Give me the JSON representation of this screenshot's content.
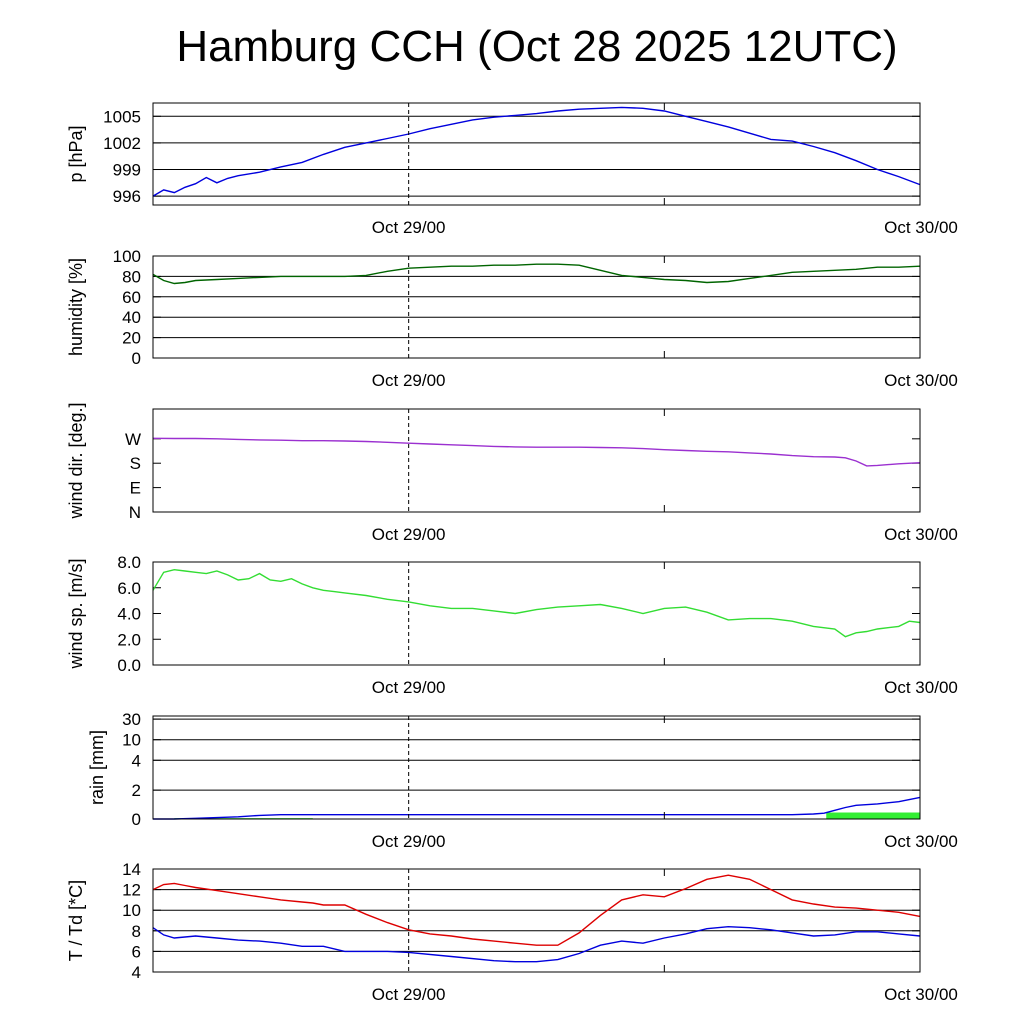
{
  "title": "Hamburg CCH (Oct 28 2025 12UTC)",
  "time_axis": {
    "start": "Oct 28 12UTC",
    "end": "Oct 30 00UTC",
    "tick_labels": [
      "Oct 29/00",
      "Oct 30/00"
    ],
    "dashed_marker": "Oct 29/00"
  },
  "chart_data": [
    {
      "id": "pressure",
      "type": "line",
      "ylabel": "p [hPa]",
      "ylim": [
        995,
        1006.5
      ],
      "yticks": [
        {
          "v": 996,
          "label": "996"
        },
        {
          "v": 999,
          "label": "999"
        },
        {
          "v": 1002,
          "label": "1002"
        },
        {
          "v": 1005,
          "label": "1005"
        }
      ],
      "grid": true,
      "series": [
        {
          "color": "#0000dd",
          "x": [
            0,
            0.5,
            1,
            1.5,
            2,
            2.5,
            3,
            3.5,
            4,
            5,
            6,
            7,
            8,
            9,
            10,
            11,
            12,
            13,
            14,
            15,
            16,
            17,
            18,
            19,
            20,
            21,
            22,
            23,
            24,
            25,
            26,
            27,
            28,
            29,
            30,
            31,
            32,
            33,
            34,
            35,
            36
          ],
          "y": [
            996.0,
            996.7,
            996.4,
            997.0,
            997.4,
            998.1,
            997.5,
            998.0,
            998.3,
            998.7,
            999.3,
            999.8,
            1000.7,
            1001.5,
            1002.0,
            1002.5,
            1003.0,
            1003.6,
            1004.1,
            1004.6,
            1004.9,
            1005.1,
            1005.3,
            1005.6,
            1005.8,
            1005.9,
            1006.0,
            1005.9,
            1005.6,
            1005.0,
            1004.4,
            1003.8,
            1003.1,
            1002.4,
            1002.2,
            1001.6,
            1000.9,
            1000.0,
            999.0,
            998.2,
            997.3
          ]
        }
      ]
    },
    {
      "id": "humidity",
      "type": "line",
      "ylabel": "humidity [%]",
      "ylim": [
        0,
        100
      ],
      "yticks": [
        {
          "v": 0,
          "label": "0"
        },
        {
          "v": 20,
          "label": "20"
        },
        {
          "v": 40,
          "label": "40"
        },
        {
          "v": 60,
          "label": "60"
        },
        {
          "v": 80,
          "label": "80"
        },
        {
          "v": 100,
          "label": "100"
        }
      ],
      "grid": true,
      "series": [
        {
          "color": "#006400",
          "x": [
            0,
            0.5,
            1,
            1.5,
            2,
            3,
            4,
            5,
            6,
            7,
            8,
            9,
            10,
            11,
            12,
            13,
            14,
            15,
            16,
            17,
            18,
            19,
            20,
            21,
            22,
            23,
            24,
            25,
            26,
            27,
            28,
            29,
            30,
            31,
            32,
            33,
            34,
            35,
            36
          ],
          "y": [
            82,
            76,
            73,
            74,
            76,
            77,
            78,
            79,
            80,
            80,
            80,
            80,
            81,
            85,
            88,
            89,
            90,
            90,
            91,
            91,
            92,
            92,
            91,
            86,
            81,
            79,
            77,
            76,
            74,
            75,
            78,
            81,
            84,
            85,
            86,
            87,
            89,
            89,
            90
          ]
        }
      ]
    },
    {
      "id": "wind_direction",
      "type": "line",
      "ylabel": "wind dir. [deg.]",
      "ylim": [
        0,
        380
      ],
      "yticks": [
        {
          "v": 0,
          "label": "N"
        },
        {
          "v": 90,
          "label": "E"
        },
        {
          "v": 180,
          "label": "S"
        },
        {
          "v": 270,
          "label": "W"
        }
      ],
      "grid": false,
      "series": [
        {
          "color": "#9b30d0",
          "x": [
            0,
            1,
            2,
            3,
            4,
            5,
            6,
            7,
            8,
            9,
            10,
            11,
            12,
            13,
            14,
            15,
            16,
            17,
            18,
            19,
            20,
            21,
            22,
            23,
            24,
            25,
            26,
            27,
            28,
            29,
            30,
            31,
            32,
            32.5,
            33,
            33.5,
            34,
            35,
            36
          ],
          "y": [
            272,
            271,
            271,
            270,
            268,
            266,
            265,
            263,
            263,
            262,
            260,
            257,
            254,
            251,
            248,
            245,
            242,
            240,
            239,
            239,
            239,
            238,
            237,
            234,
            230,
            227,
            224,
            222,
            218,
            214,
            208,
            204,
            203,
            200,
            188,
            170,
            172,
            178,
            182
          ]
        }
      ]
    },
    {
      "id": "wind_speed",
      "type": "line",
      "ylabel": "wind sp. [m/s]",
      "ylim": [
        0,
        8.0
      ],
      "yticks": [
        {
          "v": 0,
          "label": "0.0"
        },
        {
          "v": 2,
          "label": "2.0"
        },
        {
          "v": 4,
          "label": "4.0"
        },
        {
          "v": 6,
          "label": "6.0"
        },
        {
          "v": 8,
          "label": "8.0"
        }
      ],
      "grid": false,
      "series": [
        {
          "color": "#33dd33",
          "x": [
            0,
            0.5,
            1,
            1.5,
            2,
            2.5,
            3,
            3.5,
            4,
            4.5,
            5,
            5.5,
            6,
            6.5,
            7,
            7.5,
            8,
            8.5,
            9,
            10,
            11,
            12,
            13,
            14,
            15,
            16,
            17,
            18,
            19,
            20,
            21,
            22,
            23,
            24,
            25,
            26,
            27,
            28,
            29,
            30,
            31,
            32,
            32.5,
            33,
            33.5,
            34,
            35,
            35.5,
            36
          ],
          "y": [
            5.8,
            7.2,
            7.4,
            7.3,
            7.2,
            7.1,
            7.3,
            7.0,
            6.6,
            6.7,
            7.1,
            6.6,
            6.5,
            6.7,
            6.3,
            6.0,
            5.8,
            5.7,
            5.6,
            5.4,
            5.1,
            4.9,
            4.6,
            4.4,
            4.4,
            4.2,
            4.0,
            4.3,
            4.5,
            4.6,
            4.7,
            4.4,
            4.0,
            4.4,
            4.5,
            4.1,
            3.5,
            3.6,
            3.6,
            3.4,
            3.0,
            2.8,
            2.2,
            2.5,
            2.6,
            2.8,
            3.0,
            3.4,
            3.3
          ]
        }
      ]
    },
    {
      "id": "rain",
      "type": "line",
      "ylabel": "rain [mm]",
      "ylim": [
        0,
        30
      ],
      "yticks": [
        {
          "v": 0,
          "label": "0"
        },
        {
          "v": 2,
          "label": "2"
        },
        {
          "v": 4,
          "label": "4"
        },
        {
          "v": 10,
          "label": "10"
        },
        {
          "v": 30,
          "label": "30"
        }
      ],
      "grid": true,
      "series": [
        {
          "name_hidden": true,
          "color": "#0000dd",
          "x": [
            0,
            1,
            2,
            3,
            4,
            5,
            6,
            7,
            8,
            10,
            14,
            18,
            22,
            26,
            30,
            31,
            31.5,
            32,
            32.5,
            33,
            34,
            35,
            36
          ],
          "y": [
            0,
            0,
            0.05,
            0.1,
            0.15,
            0.25,
            0.3,
            0.3,
            0.3,
            0.3,
            0.3,
            0.3,
            0.3,
            0.3,
            0.3,
            0.35,
            0.4,
            0.6,
            0.8,
            0.95,
            1.05,
            1.2,
            1.5
          ]
        }
      ],
      "bars": [
        {
          "color": "#33ee33",
          "x0": 1,
          "x1": 7.5,
          "value": 0.06
        },
        {
          "color": "#33ee33",
          "x0": 31.6,
          "x1": 36,
          "value": 0.45
        }
      ]
    },
    {
      "id": "temperature",
      "type": "line",
      "ylabel": "T / Td [*C]",
      "ylim": [
        4,
        14
      ],
      "yticks": [
        {
          "v": 4,
          "label": "4"
        },
        {
          "v": 6,
          "label": "6"
        },
        {
          "v": 8,
          "label": "8"
        },
        {
          "v": 10,
          "label": "10"
        },
        {
          "v": 12,
          "label": "12"
        },
        {
          "v": 14,
          "label": "14"
        }
      ],
      "grid": true,
      "series": [
        {
          "color": "#dd0000",
          "x": [
            0,
            0.5,
            1,
            1.5,
            2,
            3,
            4,
            5,
            6,
            7,
            7.5,
            8,
            9,
            10,
            11,
            12,
            13,
            14,
            15,
            16,
            17,
            18,
            19,
            20,
            21,
            22,
            23,
            24,
            25,
            26,
            27,
            28,
            29,
            30,
            31,
            32,
            33,
            34,
            35,
            36
          ],
          "y": [
            12.0,
            12.5,
            12.6,
            12.4,
            12.2,
            11.9,
            11.6,
            11.3,
            11.0,
            10.8,
            10.7,
            10.5,
            10.5,
            9.6,
            8.8,
            8.1,
            7.7,
            7.5,
            7.2,
            7.0,
            6.8,
            6.6,
            6.6,
            7.8,
            9.5,
            11.0,
            11.5,
            11.3,
            12.1,
            13.0,
            13.4,
            13.0,
            12.0,
            11.0,
            10.6,
            10.3,
            10.2,
            10.0,
            9.8,
            9.4
          ]
        },
        {
          "color": "#0000dd",
          "x": [
            0,
            0.5,
            1,
            2,
            3,
            4,
            5,
            6,
            7,
            8,
            9,
            10,
            11,
            12,
            14,
            16,
            17,
            18,
            19,
            20,
            21,
            22,
            23,
            24,
            25,
            26,
            27,
            28,
            29,
            30,
            31,
            32,
            33,
            34,
            35,
            36
          ],
          "y": [
            8.3,
            7.6,
            7.3,
            7.5,
            7.3,
            7.1,
            7.0,
            6.8,
            6.5,
            6.5,
            6.0,
            6.0,
            6.0,
            5.9,
            5.5,
            5.1,
            5.0,
            5.0,
            5.2,
            5.8,
            6.6,
            7.0,
            6.8,
            7.3,
            7.7,
            8.2,
            8.4,
            8.3,
            8.1,
            7.8,
            7.5,
            7.6,
            7.9,
            7.9,
            7.7,
            7.5
          ]
        }
      ]
    }
  ]
}
